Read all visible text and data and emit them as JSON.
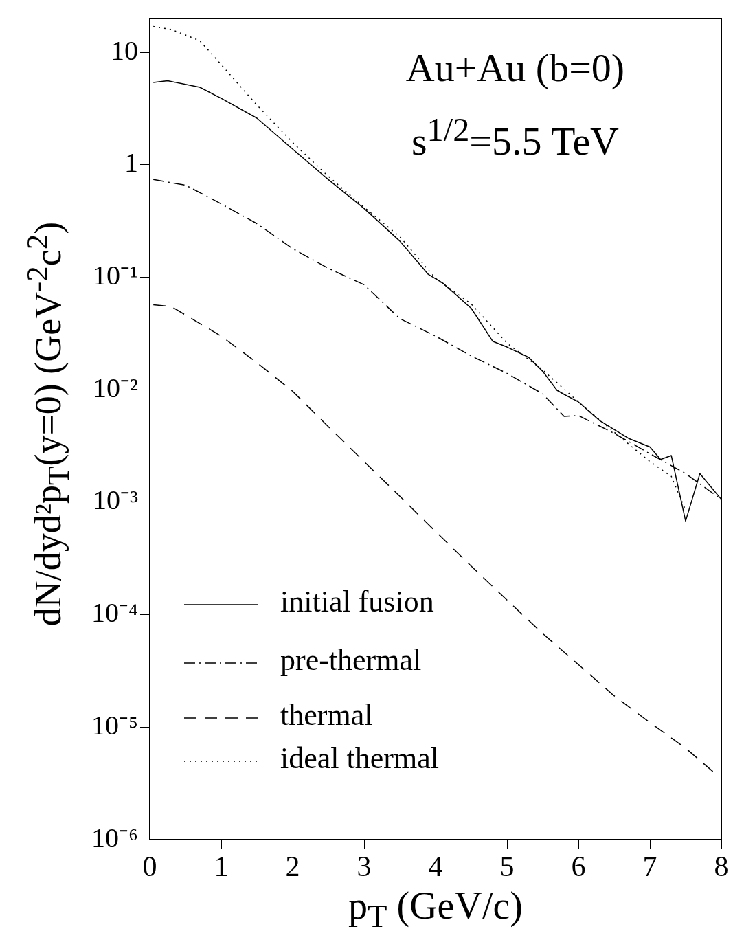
{
  "chart_data": {
    "type": "line",
    "xlabel": "p$_{T}$ (GeV/c)",
    "ylabel": "dN/dyd²p$_{T}$(y=0) (GeV$^{-2}$c$^{2}$)",
    "annotations": [
      "Au+Au (b=0)",
      "s$^{1/2}$=5.5 TeV"
    ],
    "log": "y",
    "grid": false,
    "legend": "bottom left",
    "marker": "none",
    "xlim": [
      0,
      8
    ],
    "xticks": [
      0,
      1,
      2,
      3,
      4,
      5,
      6,
      7,
      8
    ],
    "ylim": [
      1e-06,
      20
    ],
    "yticks": [
      {
        "value": 10,
        "label": "10"
      },
      {
        "value": 1,
        "label": "1"
      },
      {
        "value": 0.1,
        "label": "10⁻¹"
      },
      {
        "value": 0.01,
        "label": "10⁻²"
      },
      {
        "value": 0.001,
        "label": "10⁻³"
      },
      {
        "value": 0.0001,
        "label": "10⁻⁴"
      },
      {
        "value": 1e-05,
        "label": "10⁻⁵"
      },
      {
        "value": 1e-06,
        "label": "10⁻⁶"
      }
    ],
    "series": [
      {
        "name": "initial fusion",
        "color": "#000000",
        "line_style": "solid",
        "x": [
          0.05,
          0.25,
          0.7,
          1,
          1.5,
          2,
          2.5,
          3,
          3.5,
          3.9,
          4.1,
          4.5,
          4.8,
          5,
          5.3,
          5.5,
          5.7,
          5.8,
          6,
          6.3,
          6.7,
          7,
          7.15,
          7.3,
          7.5,
          7.7,
          8
        ],
        "values": [
          5.4,
          5.6,
          4.9,
          3.9,
          2.6,
          1.38,
          0.74,
          0.41,
          0.21,
          0.106,
          0.089,
          0.053,
          0.027,
          0.024,
          0.0195,
          0.0146,
          0.0099,
          0.0091,
          0.0078,
          0.0053,
          0.0037,
          0.0031,
          0.0024,
          0.0026,
          0.00068,
          0.0018,
          0.00106
        ]
      },
      {
        "name": "pre-thermal",
        "color": "#000000",
        "line_style": "dashdot",
        "x": [
          0.05,
          0.5,
          1,
          1.5,
          2,
          2.5,
          3,
          3.5,
          4,
          4.5,
          5,
          5.5,
          5.8,
          6,
          6.5,
          7,
          7.5,
          8
        ],
        "values": [
          0.74,
          0.66,
          0.45,
          0.3,
          0.18,
          0.12,
          0.086,
          0.043,
          0.03,
          0.02,
          0.014,
          0.0092,
          0.0058,
          0.0059,
          0.0041,
          0.0027,
          0.0018,
          0.00106
        ]
      },
      {
        "name": "thermal",
        "color": "#000000",
        "line_style": "dashed",
        "x": [
          0.05,
          0.3,
          1,
          1.5,
          2,
          2.5,
          3,
          3.5,
          4,
          4.5,
          5,
          5.5,
          6,
          6.5,
          7,
          7.5,
          7.95
        ],
        "values": [
          0.057,
          0.055,
          0.03,
          0.0174,
          0.0097,
          0.0047,
          0.0023,
          0.00113,
          0.00055,
          0.00027,
          0.000135,
          6.8e-05,
          3.6e-05,
          1.9e-05,
          1.1e-05,
          6.5e-06,
          3.7e-06
        ]
      },
      {
        "name": "ideal thermal",
        "color": "#000000",
        "line_style": "dotted",
        "x": [
          0.05,
          0.3,
          0.7,
          1,
          1.5,
          2,
          2.5,
          3,
          3.5,
          4,
          4.5,
          5,
          5.5,
          6,
          6.5,
          7,
          7.3,
          7.5
        ],
        "values": [
          17,
          16,
          12.7,
          7.8,
          3.4,
          1.58,
          0.79,
          0.42,
          0.23,
          0.098,
          0.058,
          0.026,
          0.015,
          0.0078,
          0.0042,
          0.0023,
          0.0017,
          0.00085
        ]
      }
    ]
  }
}
